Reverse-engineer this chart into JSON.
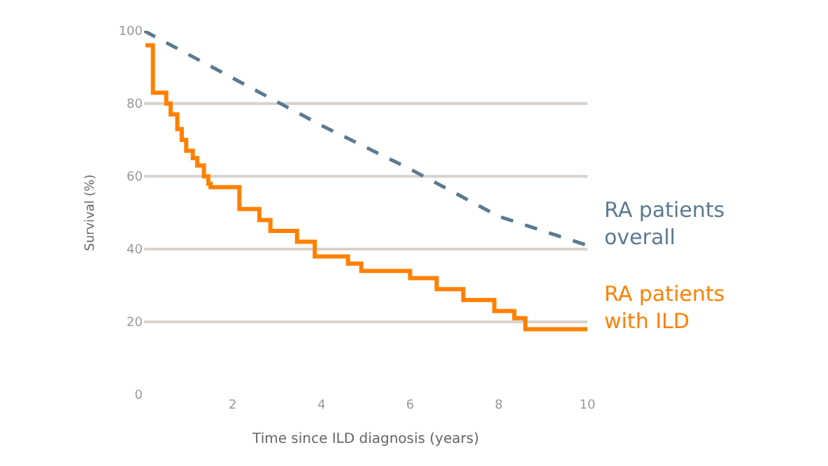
{
  "chart_data": {
    "type": "line",
    "xlabel": "Time since ILD diagnosis (years)",
    "ylabel": "Survival (%)",
    "xlim": [
      0,
      10
    ],
    "xticks": [
      2,
      4,
      6,
      8,
      10
    ],
    "ylim": [
      0,
      100
    ],
    "yticks": [
      0,
      20,
      40,
      60,
      80,
      100
    ],
    "grid": "y",
    "legend": false,
    "series": [
      {
        "name": "RA patients overall",
        "line_style": "dashed",
        "color": "#5b7a90",
        "x": [
          0,
          2,
          4,
          6,
          8,
          10
        ],
        "values": [
          100,
          87,
          74,
          62,
          49,
          41
        ]
      },
      {
        "name": "RA patients with ILD",
        "type": "step",
        "line_style": "solid",
        "color": "#ff8000",
        "x": [
          0.03,
          0.2,
          0.5,
          0.6,
          0.75,
          0.85,
          0.95,
          1.1,
          1.2,
          1.35,
          1.45,
          1.5,
          2.15,
          2.6,
          2.85,
          3.45,
          3.85,
          4.6,
          4.9,
          6.0,
          6.6,
          7.2,
          7.9,
          8.35,
          8.6,
          10
        ],
        "values": [
          96,
          83,
          80,
          77,
          73,
          70,
          67,
          65,
          63,
          60,
          58,
          57,
          51,
          48,
          45,
          42,
          38,
          36,
          34,
          32,
          29,
          26,
          23,
          21,
          18,
          18
        ]
      }
    ]
  }
}
